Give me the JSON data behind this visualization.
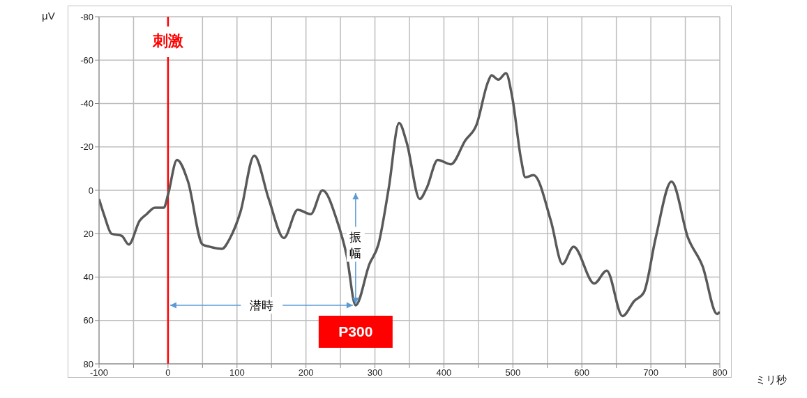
{
  "chart_data": {
    "type": "line",
    "xlabel": "ミリ秒",
    "ylabel": "μV",
    "x": [
      -100,
      -92,
      -82,
      -67,
      -57,
      -41,
      -31,
      -19,
      -6,
      0,
      13,
      29,
      50,
      60,
      78,
      90,
      105,
      125,
      146,
      168,
      188,
      207,
      224,
      245,
      259,
      272,
      292,
      305,
      320,
      335,
      346,
      365,
      375,
      391,
      410,
      431,
      447,
      464,
      469,
      479,
      490,
      499,
      512,
      518,
      530,
      555,
      572,
      588,
      618,
      636,
      659,
      676,
      690,
      707,
      730,
      754,
      775,
      796,
      800
    ],
    "series": [
      {
        "color": "#595959",
        "values": [
          4,
          12,
          20,
          21,
          25,
          14,
          11,
          8,
          8,
          2,
          -14,
          -4,
          25,
          26,
          27,
          22,
          10,
          -16,
          4,
          22,
          9,
          11,
          0,
          14,
          30,
          53,
          34,
          25,
          -1,
          -31,
          -22,
          4,
          -1,
          -14,
          -12,
          -23,
          -30,
          -50,
          -53,
          -51,
          -54,
          -43,
          -14,
          -6,
          -7,
          14,
          34,
          26,
          43,
          37,
          58,
          51,
          47,
          22,
          -4,
          22,
          35,
          57,
          56
        ]
      }
    ],
    "xlim": [
      -100,
      800
    ],
    "xticks": [
      -100,
      {
        "value": -50,
        "label": null
      },
      0,
      {
        "value": 50,
        "label": null
      },
      100,
      {
        "value": 150,
        "label": null
      },
      200,
      {
        "value": 250,
        "label": null
      },
      300,
      {
        "value": 350,
        "label": null
      },
      400,
      {
        "value": 450,
        "label": null
      },
      500,
      {
        "value": 550,
        "label": null
      },
      600,
      {
        "value": 650,
        "label": null
      },
      700,
      {
        "value": 750,
        "label": null
      },
      800
    ],
    "ylim": [
      80,
      -80
    ],
    "yticks": [
      -80,
      -60,
      -40,
      -20,
      0,
      20,
      40,
      60,
      80
    ],
    "grid": true,
    "legend": false,
    "marker": "none",
    "line_style": "solid",
    "ref_lines": [
      {
        "axis": "x",
        "value": 0,
        "label": "刺激",
        "color": "#ff0000"
      }
    ],
    "annotations": [
      "振幅",
      "潜時",
      {
        "text": "P300",
        "x": 272,
        "y": 53
      }
    ]
  }
}
